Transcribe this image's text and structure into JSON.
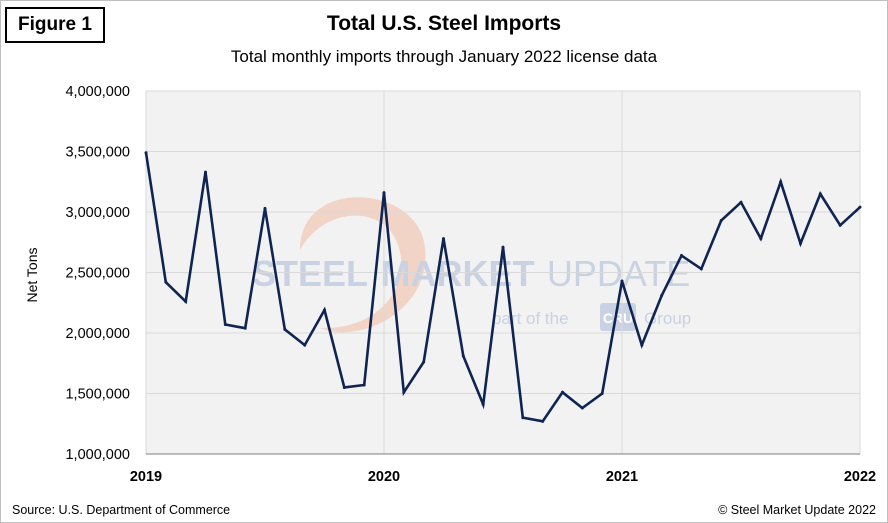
{
  "figure_label": "Figure 1",
  "source": "Source: U.S. Department of Commerce",
  "copyright": "© Steel Market Update 2022",
  "watermark": {
    "brand_bold": "STEEL",
    "brand_mid": "MARKET",
    "brand_light": "UPDATE",
    "tagline_pre": "part of the",
    "tagline_logo": "CRU",
    "tagline_post": "Group"
  },
  "colors": {
    "line": "#0f2452",
    "grid": "#d9d9d9",
    "plot_bg": "#f2f2f2",
    "watermark_swoosh": "#f2c9b8"
  },
  "chart_data": {
    "type": "line",
    "title": "Total U.S. Steel Imports",
    "subtitle": "Total monthly imports through January 2022 license data",
    "xlabel": "",
    "ylabel": "Net Tons",
    "ylim": [
      1000000,
      4000000
    ],
    "yticks": [
      1000000,
      1500000,
      2000000,
      2500000,
      3000000,
      3500000,
      4000000
    ],
    "ytick_labels": [
      "1,000,000",
      "1,500,000",
      "2,000,000",
      "2,500,000",
      "3,000,000",
      "3,500,000",
      "4,000,000"
    ],
    "xticks": [
      "2019",
      "2020",
      "2021",
      "2022"
    ],
    "grid": true,
    "x": [
      "2019-01",
      "2019-02",
      "2019-03",
      "2019-04",
      "2019-05",
      "2019-06",
      "2019-07",
      "2019-08",
      "2019-09",
      "2019-10",
      "2019-11",
      "2019-12",
      "2020-01",
      "2020-02",
      "2020-03",
      "2020-04",
      "2020-05",
      "2020-06",
      "2020-07",
      "2020-08",
      "2020-09",
      "2020-10",
      "2020-11",
      "2020-12",
      "2021-01",
      "2021-02",
      "2021-03",
      "2021-04",
      "2021-05",
      "2021-06",
      "2021-07",
      "2021-08",
      "2021-09",
      "2021-10",
      "2021-11",
      "2021-12",
      "2022-01"
    ],
    "series": [
      {
        "values": [
          3490000,
          2420000,
          2260000,
          3330000,
          2070000,
          2040000,
          3030000,
          2030000,
          1900000,
          2190000,
          1550000,
          1570000,
          3160000,
          1510000,
          1760000,
          2780000,
          1810000,
          1410000,
          2710000,
          1300000,
          1270000,
          1510000,
          1380000,
          1500000,
          2430000,
          1900000,
          2310000,
          2640000,
          2530000,
          2930000,
          3080000,
          2780000,
          3250000,
          2740000,
          3150000,
          2890000,
          3040000
        ]
      }
    ]
  }
}
